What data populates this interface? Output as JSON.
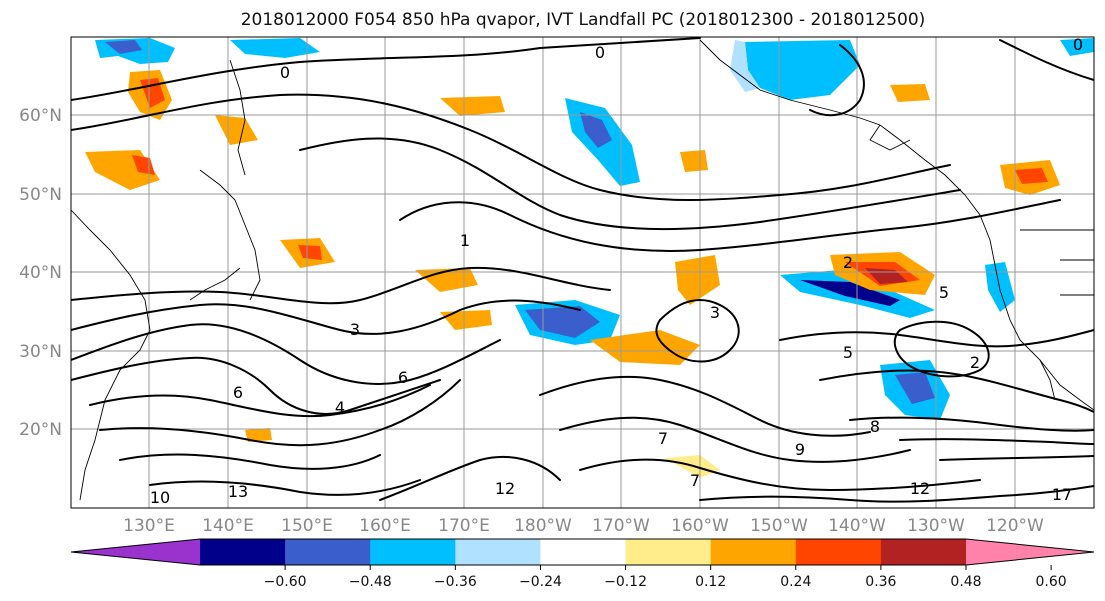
{
  "title": "2018012000 F054 850 hPa qvapor, IVT Landfall PC (2018012300 - 2018012500)",
  "lat_labels": [
    "60°N",
    "50°N",
    "40°N",
    "30°N",
    "20°N"
  ],
  "lon_labels": [
    "130°E",
    "140°E",
    "150°E",
    "160°E",
    "170°E",
    "180°W",
    "170°W",
    "160°W",
    "150°W",
    "140°W",
    "130°W",
    "120°W"
  ],
  "colorbar": {
    "colors": [
      "#9a32cd",
      "#00008b",
      "#3a5fcd",
      "#00bfff",
      "#b0e2ff",
      "#ffffff",
      "#ffec8b",
      "#ffa500",
      "#ff4500",
      "#b22222",
      "#ff82ab"
    ],
    "tick_labels": [
      "−0.60",
      "−0.48",
      "−0.36",
      "−0.24",
      "−0.12",
      "0.12",
      "0.24",
      "0.36",
      "0.48",
      "0.60"
    ]
  },
  "contour_labels": [
    "0",
    "0",
    "0",
    "1",
    "2",
    "2",
    "3",
    "3",
    "4",
    "5",
    "5",
    "6",
    "6",
    "7",
    "7",
    "8",
    "9",
    "10",
    "12",
    "12",
    "13",
    "17"
  ]
}
